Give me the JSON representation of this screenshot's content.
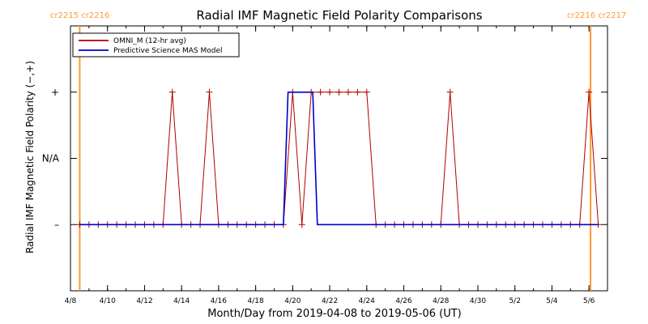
{
  "colors": {
    "omni": "#b00000",
    "mas": "#0000cc",
    "carrington": "#ff9933",
    "axis": "#000000"
  },
  "chart_data": {
    "type": "line",
    "title": "Radial IMF Magnetic Field Polarity Comparisons",
    "xlabel": "Month/Day from 2019-04-08 to 2019-05-06 (UT)",
    "ylabel": "Radial IMF Magnetic Field Polarity (−,+)",
    "xlim": [
      "2019-04-08T00:00",
      "2019-05-07T00:00"
    ],
    "ylim": [
      -2,
      2
    ],
    "x_ticks": [
      {
        "label": "4/8",
        "date": "2019-04-08"
      },
      {
        "label": "4/10",
        "date": "2019-04-10"
      },
      {
        "label": "4/12",
        "date": "2019-04-12"
      },
      {
        "label": "4/14",
        "date": "2019-04-14"
      },
      {
        "label": "4/16",
        "date": "2019-04-16"
      },
      {
        "label": "4/18",
        "date": "2019-04-18"
      },
      {
        "label": "4/20",
        "date": "2019-04-20"
      },
      {
        "label": "4/22",
        "date": "2019-04-22"
      },
      {
        "label": "4/24",
        "date": "2019-04-24"
      },
      {
        "label": "4/26",
        "date": "2019-04-26"
      },
      {
        "label": "4/28",
        "date": "2019-04-28"
      },
      {
        "label": "4/30",
        "date": "2019-04-30"
      },
      {
        "label": "5/2",
        "date": "2019-05-02"
      },
      {
        "label": "5/4",
        "date": "2019-05-04"
      },
      {
        "label": "5/6",
        "date": "2019-05-06"
      }
    ],
    "y_ticks": [
      {
        "label": "+",
        "value": 1
      },
      {
        "label": "N/A",
        "value": 0
      },
      {
        "label": "–",
        "value": -1
      }
    ],
    "legend": {
      "placement": "top-left",
      "entries": [
        "OMNI_M (12-hr avg)",
        "Predictive Science MAS Model"
      ]
    },
    "carrington": [
      {
        "date": "2019-04-08T12:00",
        "labels": [
          "cr2215",
          "cr2216"
        ],
        "side": "left"
      },
      {
        "date": "2019-05-06T02:00",
        "labels": [
          "cr2216",
          "cr2217"
        ],
        "side": "right"
      }
    ],
    "series": [
      {
        "name": "OMNI_M (12-hr avg)",
        "x": [
          "2019-04-08T12:00",
          "2019-04-09T00:00",
          "2019-04-09T12:00",
          "2019-04-10T00:00",
          "2019-04-10T12:00",
          "2019-04-11T00:00",
          "2019-04-11T12:00",
          "2019-04-12T00:00",
          "2019-04-12T12:00",
          "2019-04-13T00:00",
          "2019-04-13T12:00",
          "2019-04-14T00:00",
          "2019-04-14T12:00",
          "2019-04-15T00:00",
          "2019-04-15T12:00",
          "2019-04-16T00:00",
          "2019-04-16T12:00",
          "2019-04-17T00:00",
          "2019-04-17T12:00",
          "2019-04-18T00:00",
          "2019-04-18T12:00",
          "2019-04-19T00:00",
          "2019-04-19T12:00",
          "2019-04-20T00:00",
          "2019-04-20T12:00",
          "2019-04-21T00:00",
          "2019-04-21T12:00",
          "2019-04-22T00:00",
          "2019-04-22T12:00",
          "2019-04-23T00:00",
          "2019-04-23T12:00",
          "2019-04-24T00:00",
          "2019-04-24T12:00",
          "2019-04-25T00:00",
          "2019-04-25T12:00",
          "2019-04-26T00:00",
          "2019-04-26T12:00",
          "2019-04-27T00:00",
          "2019-04-27T12:00",
          "2019-04-28T00:00",
          "2019-04-28T12:00",
          "2019-04-29T00:00",
          "2019-04-29T12:00",
          "2019-04-30T00:00",
          "2019-04-30T12:00",
          "2019-05-01T00:00",
          "2019-05-01T12:00",
          "2019-05-02T00:00",
          "2019-05-02T12:00",
          "2019-05-03T00:00",
          "2019-05-03T12:00",
          "2019-05-04T00:00",
          "2019-05-04T12:00",
          "2019-05-05T00:00",
          "2019-05-05T12:00",
          "2019-05-06T00:00",
          "2019-05-06T12:00"
        ],
        "values": [
          -1,
          -1,
          -1,
          -1,
          -1,
          -1,
          -1,
          -1,
          -1,
          -1,
          1,
          -1,
          -1,
          -1,
          1,
          -1,
          -1,
          -1,
          -1,
          -1,
          -1,
          -1,
          -1,
          1,
          -1,
          1,
          1,
          1,
          1,
          1,
          1,
          1,
          -1,
          -1,
          -1,
          -1,
          -1,
          -1,
          -1,
          -1,
          1,
          -1,
          -1,
          -1,
          -1,
          -1,
          -1,
          -1,
          -1,
          -1,
          -1,
          -1,
          -1,
          -1,
          -1,
          1,
          -1
        ]
      },
      {
        "name": "Predictive Science MAS Model",
        "x": [
          "2019-04-08T12:00",
          "2019-04-19T12:00",
          "2019-04-19T18:00",
          "2019-04-21T02:00",
          "2019-04-21T08:00",
          "2019-05-06T12:00"
        ],
        "values": [
          -1,
          -1,
          1,
          1,
          -1,
          -1
        ]
      }
    ]
  }
}
